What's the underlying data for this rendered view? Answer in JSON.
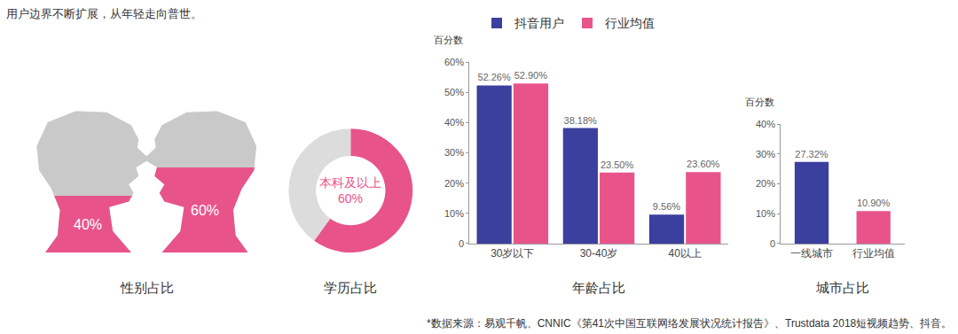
{
  "title": "用户边界不断扩展，从年轻走向普世。",
  "source": "*数据来源：易观千帆、CNNIC《第41次中国互联网络发展状况统计报告》、Trustdata 2018短视频趋势、抖音。",
  "chart_data": [
    {
      "type": "pictogram",
      "title": "性别占比",
      "categories": [
        null,
        null
      ],
      "values": [
        40,
        60
      ],
      "value_labels": [
        "40%",
        "60%"
      ],
      "color": "#e8548a",
      "ylim": [
        0,
        100
      ],
      "tick_labels": false,
      "data_labels": true
    },
    {
      "type": "pie",
      "title": "学历占比",
      "categories": [
        "本科及以上",
        null
      ],
      "values": [
        60,
        40
      ],
      "value_labels": [
        "60%",
        null
      ],
      "colors": [
        "#e8548a",
        "#dcdcdc"
      ],
      "data_labels": true
    },
    {
      "type": "bar",
      "title": "年龄占比",
      "ylabel": "百分数",
      "categories": [
        "30岁以下",
        "30-40岁",
        "40以上"
      ],
      "series": [
        {
          "name": "抖音用户",
          "color": "#3b3f9e",
          "values": [
            52.26,
            38.18,
            9.56
          ],
          "value_labels": [
            "52.26%",
            "38.18%",
            "9.56%"
          ]
        },
        {
          "name": "行业均值",
          "color": "#e8548a",
          "values": [
            52.9,
            23.5,
            23.6
          ],
          "value_labels": [
            "52.90%",
            "23.50%",
            "23.60%"
          ]
        }
      ],
      "ylim": [
        0,
        60
      ],
      "yticks": [
        0,
        {
          "value": 10,
          "label": "10%"
        },
        {
          "value": 20,
          "label": "20%"
        },
        {
          "value": 30,
          "label": "30%"
        },
        {
          "value": 40,
          "label": "40%"
        },
        {
          "value": 50,
          "label": "50%"
        },
        {
          "value": 60,
          "label": "60%"
        }
      ],
      "legend": "top",
      "data_labels": true,
      "grid": false
    },
    {
      "type": "bar",
      "title": "城市占比",
      "ylabel": "百分数",
      "categories": [
        "一线城市",
        "行业均值"
      ],
      "values": [
        27.32,
        10.9
      ],
      "value_labels": [
        "27.32%",
        "10.90%"
      ],
      "colors": [
        "#3b3f9e",
        "#e8548a"
      ],
      "ylim": [
        0,
        40
      ],
      "yticks": [
        0,
        {
          "value": 10,
          "label": "10%"
        },
        {
          "value": 20,
          "label": "20%"
        },
        {
          "value": 30,
          "label": "30%"
        },
        {
          "value": 40,
          "label": "40%"
        }
      ],
      "data_labels": true,
      "grid": false
    }
  ]
}
